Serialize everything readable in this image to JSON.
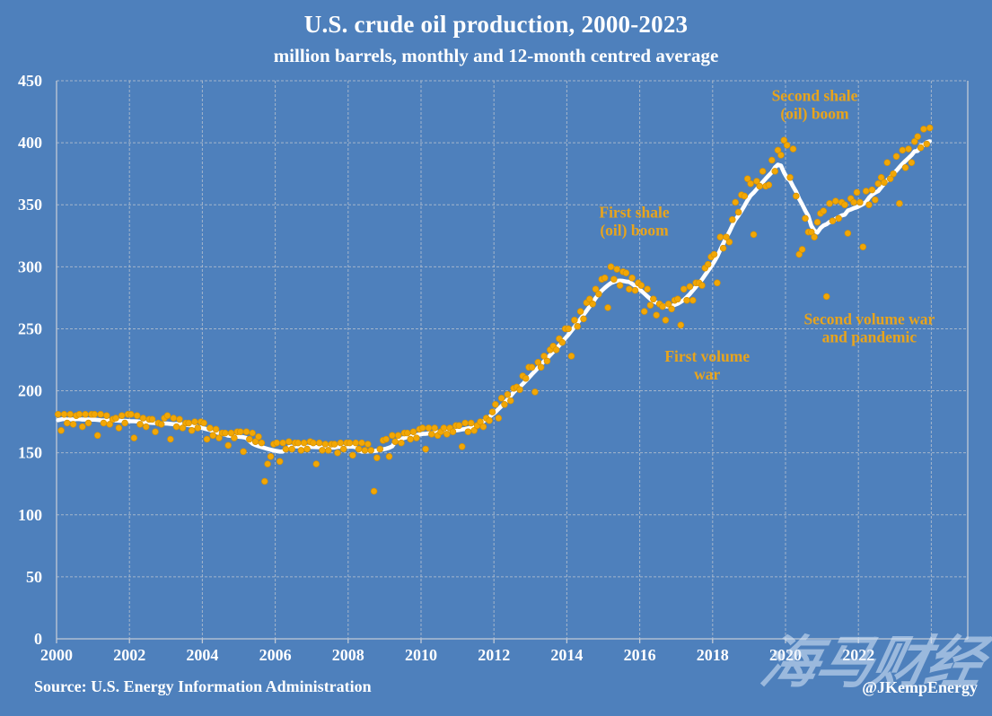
{
  "title": "U.S. crude oil production, 2000-2023",
  "subtitle": "million barrels, monthly and 12-month centred average",
  "source": "Source: U.S. Energy Information Administration",
  "credit": "@JKempEnergy",
  "watermark": "海马财经",
  "colors": {
    "background": "#4e80bc",
    "dot": "#f2a705",
    "dot_edge": "#d69102",
    "average_line": "#ffffff",
    "grid": "#b4bfce",
    "axis": "#c2cad6",
    "tick_text": "#ffffff",
    "annotation": "#e8a41c",
    "title_text": "#ffffff",
    "watermark_text": "rgba(219,231,247,0.55)"
  },
  "chart_data": {
    "type": "scatter",
    "title": "U.S. crude oil production, 2000-2023",
    "subtitle": "million barrels, monthly and 12-month centred average",
    "xlabel": "",
    "ylabel": "",
    "xlim": [
      2000,
      2025
    ],
    "ylim": [
      0,
      450
    ],
    "grid": true,
    "x_ticks": [
      2000,
      2002,
      2004,
      2006,
      2008,
      2010,
      2012,
      2014,
      2016,
      2018,
      2020,
      2022
    ],
    "x_grid_years": [
      2002,
      2004,
      2006,
      2008,
      2010,
      2012,
      2014,
      2016,
      2018,
      2020,
      2022,
      2024
    ],
    "y_ticks": [
      0,
      50,
      100,
      150,
      200,
      250,
      300,
      350,
      400,
      450
    ],
    "series": [
      {
        "name": "monthly production (million barrels)",
        "type": "scatter",
        "start_year": 2000,
        "frequency": "monthly",
        "values": [
          181,
          168,
          181,
          174,
          181,
          173,
          180,
          181,
          171,
          181,
          174,
          181,
          181,
          164,
          181,
          174,
          180,
          173,
          177,
          178,
          170,
          180,
          174,
          181,
          181,
          162,
          180,
          173,
          178,
          171,
          177,
          177,
          167,
          174,
          173,
          178,
          180,
          161,
          178,
          171,
          177,
          170,
          174,
          174,
          168,
          175,
          170,
          175,
          174,
          161,
          170,
          164,
          169,
          162,
          166,
          166,
          156,
          166,
          162,
          167,
          167,
          151,
          167,
          161,
          166,
          159,
          163,
          158,
          127,
          141,
          147,
          157,
          158,
          143,
          158,
          153,
          159,
          153,
          158,
          158,
          152,
          158,
          153,
          159,
          158,
          141,
          158,
          152,
          157,
          152,
          157,
          157,
          150,
          158,
          153,
          158,
          158,
          148,
          158,
          153,
          158,
          152,
          157,
          152,
          119,
          146,
          153,
          160,
          161,
          147,
          164,
          159,
          164,
          158,
          166,
          166,
          161,
          167,
          162,
          169,
          170,
          153,
          170,
          165,
          170,
          164,
          167,
          170,
          165,
          170,
          167,
          172,
          172,
          155,
          174,
          167,
          174,
          168,
          172,
          175,
          171,
          178,
          176,
          183,
          189,
          178,
          194,
          189,
          197,
          192,
          202,
          203,
          201,
          212,
          210,
          219,
          219,
          199,
          223,
          219,
          228,
          224,
          233,
          236,
          233,
          242,
          239,
          250,
          250,
          228,
          257,
          252,
          264,
          258,
          271,
          274,
          270,
          282,
          278,
          290,
          291,
          267,
          300,
          290,
          298,
          285,
          296,
          295,
          282,
          291,
          281,
          287,
          285,
          264,
          282,
          269,
          274,
          261,
          270,
          268,
          257,
          270,
          266,
          273,
          274,
          253,
          282,
          273,
          284,
          273,
          287,
          287,
          285,
          299,
          302,
          308,
          310,
          287,
          324,
          315,
          324,
          320,
          338,
          352,
          344,
          358,
          357,
          371,
          367,
          326,
          369,
          365,
          377,
          365,
          366,
          386,
          377,
          394,
          390,
          402,
          398,
          372,
          395,
          357,
          310,
          314,
          339,
          328,
          328,
          324,
          336,
          343,
          345,
          276,
          351,
          337,
          353,
          339,
          352,
          350,
          327,
          355,
          352,
          360,
          352,
          316,
          361,
          350,
          362,
          354,
          367,
          372,
          368,
          384,
          371,
          375,
          389,
          351,
          394,
          380,
          395,
          384,
          401,
          405,
          396,
          411,
          399,
          412
        ]
      },
      {
        "name": "12-month centred average",
        "type": "line",
        "derivation": "12-month centered moving average of the monthly series (shrinking window at ends)"
      }
    ],
    "annotations": [
      {
        "id": "second-shale-boom",
        "lines": [
          "Second shale",
          "(oil) boom"
        ],
        "x": 2020.8,
        "y": 438
      },
      {
        "id": "first-shale-boom",
        "lines": [
          "First shale",
          "(oil) boom"
        ],
        "x": 2015.85,
        "y": 344
      },
      {
        "id": "first-volume-war",
        "lines": [
          "First volume",
          "war"
        ],
        "x": 2017.85,
        "y": 228
      },
      {
        "id": "second-volume-war",
        "lines": [
          "Second volume war",
          "and pandemic"
        ],
        "x": 2022.3,
        "y": 258
      }
    ]
  }
}
